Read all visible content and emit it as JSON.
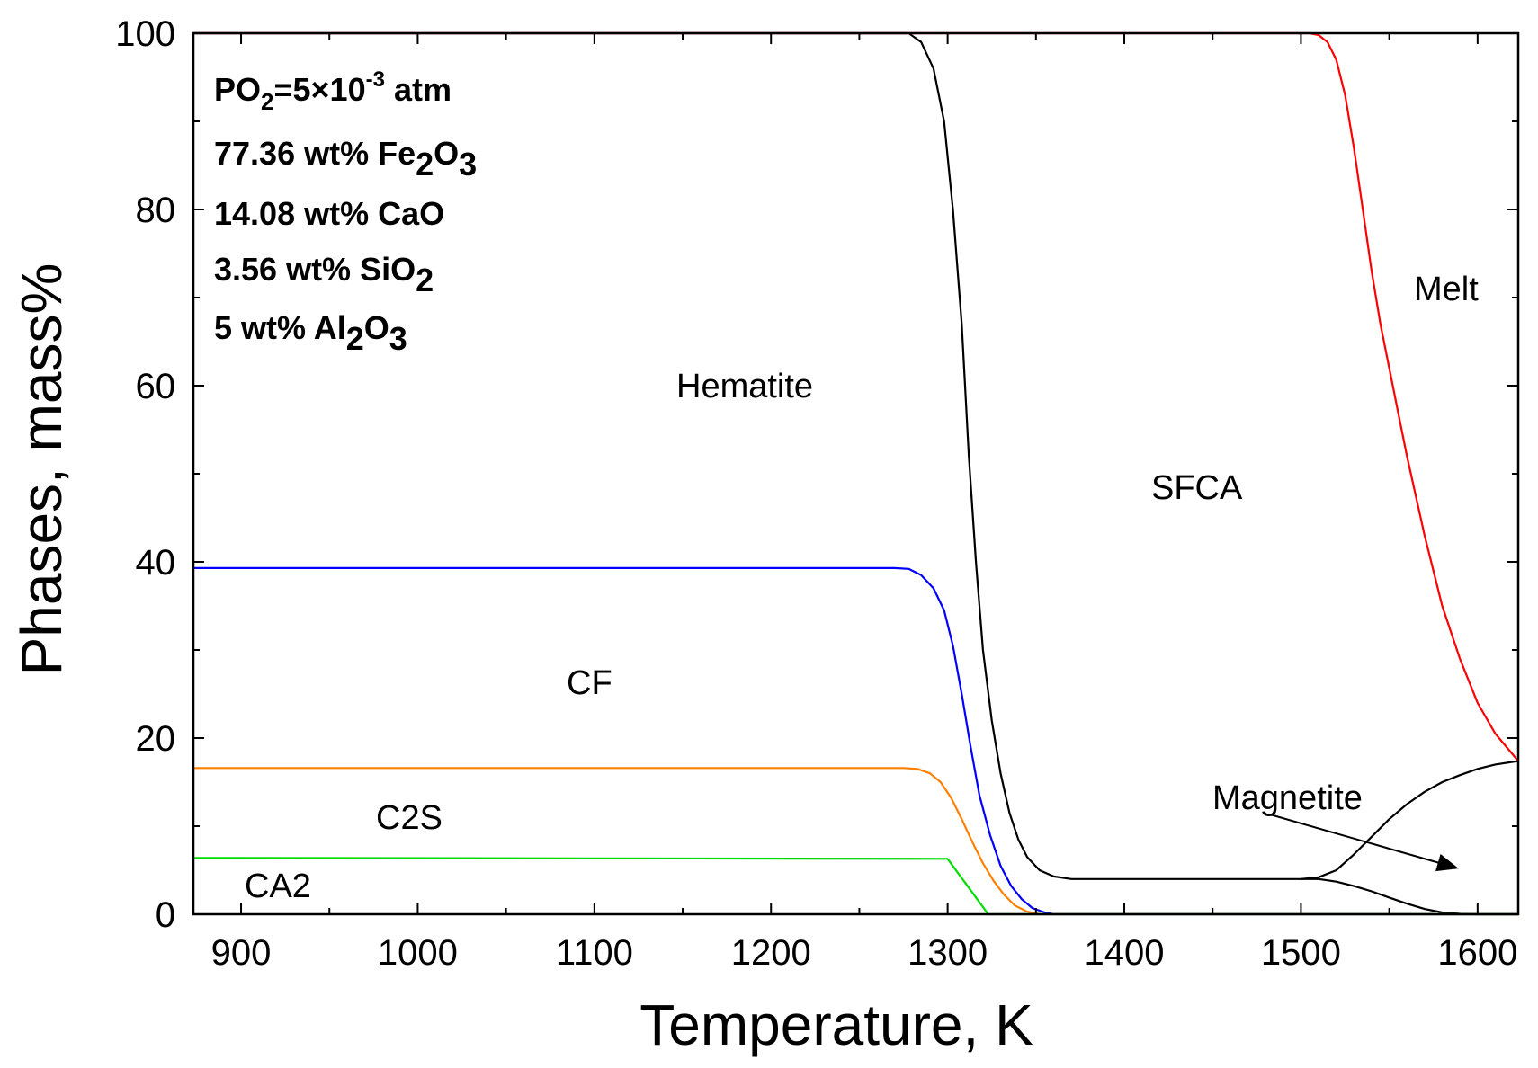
{
  "chart_data": {
    "type": "line",
    "title": "",
    "xlabel": "Temperature, K",
    "ylabel": "Phases, mass%",
    "xlim": [
      873,
      1623
    ],
    "ylim": [
      0,
      100
    ],
    "x_ticks": [
      900,
      1000,
      1100,
      1200,
      1300,
      1400,
      1500,
      1600
    ],
    "y_ticks": [
      0,
      20,
      40,
      60,
      80,
      100
    ],
    "grid": false,
    "legend": "none",
    "annotation_lines": [
      {
        "prefix": "PO",
        "sub": "2",
        "text": "=5×10",
        "sup": "-3",
        "suffix": " atm"
      },
      {
        "text": "77.36 wt% Fe",
        "sub": "2",
        "text2": "O",
        "sub2": "3"
      },
      {
        "text": "14.08 wt% CaO"
      },
      {
        "text": "3.56 wt% SiO",
        "sub": "2"
      },
      {
        "text": "5 wt% Al",
        "sub": "2",
        "text2": "O",
        "sub2": "3"
      }
    ],
    "region_labels": [
      "Hematite",
      "SFCA",
      "Melt",
      "CF",
      "C2S",
      "CA2",
      "Magnetite"
    ],
    "series": [
      {
        "name": "Hematite/SFCA boundary",
        "color": "#000000",
        "x": [
          873,
          1270,
          1278,
          1285,
          1292,
          1298,
          1303,
          1308,
          1312,
          1316,
          1320,
          1325,
          1330,
          1335,
          1340,
          1345,
          1352,
          1360,
          1370,
          1400,
          1450,
          1500,
          1510,
          1520,
          1530,
          1540,
          1550,
          1560,
          1570,
          1580,
          1590,
          1600,
          1610,
          1623
        ],
        "y": [
          100,
          100,
          100,
          99,
          96,
          90,
          80,
          67,
          52,
          40,
          30,
          22,
          16,
          11.5,
          8.5,
          6.5,
          5.0,
          4.3,
          4.0,
          4.0,
          4.0,
          4.0,
          4.2,
          5.0,
          6.8,
          8.8,
          10.8,
          12.5,
          13.9,
          15.0,
          15.8,
          16.5,
          17.0,
          17.4
        ]
      },
      {
        "name": "Magnetite lower boundary",
        "color": "#000000",
        "x": [
          1500,
          1510,
          1520,
          1530,
          1540,
          1550,
          1560,
          1570,
          1580,
          1590,
          1600,
          1623
        ],
        "y": [
          4.0,
          4.0,
          3.7,
          3.2,
          2.6,
          1.9,
          1.2,
          0.6,
          0.2,
          0.05,
          0,
          0
        ]
      },
      {
        "name": "Melt",
        "color": "#ff0000",
        "x": [
          873,
          1505,
          1510,
          1515,
          1520,
          1525,
          1530,
          1535,
          1540,
          1545,
          1550,
          1555,
          1560,
          1570,
          1580,
          1590,
          1600,
          1610,
          1623
        ],
        "y": [
          100,
          100,
          99.8,
          99,
          97,
          93,
          87,
          80,
          73,
          67,
          62,
          57,
          52,
          43,
          35,
          29,
          24,
          20.5,
          17.4
        ]
      },
      {
        "name": "CF",
        "color": "#0000ff",
        "x": [
          873,
          1270,
          1278,
          1285,
          1292,
          1298,
          1303,
          1308,
          1313,
          1318,
          1324,
          1330,
          1336,
          1342,
          1348,
          1355,
          1360,
          1623
        ],
        "y": [
          39.3,
          39.3,
          39.2,
          38.5,
          37,
          34.5,
          30.5,
          25,
          19,
          13.5,
          9,
          5.5,
          3.2,
          1.7,
          0.7,
          0.2,
          0,
          0
        ]
      },
      {
        "name": "C2S",
        "color": "#ff8000",
        "x": [
          873,
          1275,
          1283,
          1290,
          1296,
          1302,
          1308,
          1314,
          1320,
          1326,
          1332,
          1338,
          1345,
          1352,
          1623
        ],
        "y": [
          16.6,
          16.6,
          16.5,
          16.0,
          15.0,
          13.2,
          10.8,
          8.2,
          5.8,
          3.8,
          2.2,
          1.0,
          0.3,
          0,
          0
        ]
      },
      {
        "name": "CA2",
        "color": "#00dd00",
        "x": [
          873,
          1300,
          1323,
          1623
        ],
        "y": [
          6.4,
          6.3,
          0,
          0
        ]
      }
    ]
  }
}
